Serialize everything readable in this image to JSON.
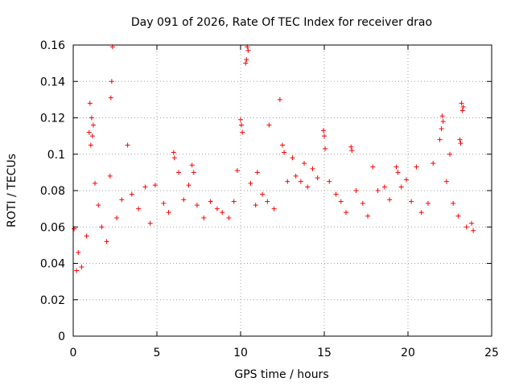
{
  "chart_data": {
    "type": "scatter",
    "title": "Day 091 of 2026, Rate Of TEC Index for receiver drao",
    "xlabel": "GPS time / hours",
    "ylabel": "ROTI / TECUs",
    "xlim": [
      0,
      25
    ],
    "ylim": [
      0,
      0.16
    ],
    "xticks": [
      0,
      5,
      10,
      15,
      20,
      25
    ],
    "yticks": [
      0,
      0.02,
      0.04,
      0.06,
      0.08,
      0.1,
      0.12,
      0.14,
      0.16
    ],
    "xtick_labels": [
      "0",
      "5",
      "10",
      "15",
      "20",
      "25"
    ],
    "ytick_labels": [
      "0",
      "0.02",
      "0.04",
      "0.06",
      "0.08",
      "0.1",
      "0.12",
      "0.14",
      "0.16"
    ],
    "grid": true,
    "marker": "+",
    "color": "#ff0000",
    "series": [
      {
        "points": [
          [
            1.0,
            0.128
          ],
          [
            1.1,
            0.12
          ],
          [
            1.2,
            0.116
          ],
          [
            1.15,
            0.11
          ],
          [
            0.95,
            0.112
          ],
          [
            1.05,
            0.105
          ],
          [
            2.35,
            0.159
          ],
          [
            2.3,
            0.14
          ],
          [
            2.25,
            0.131
          ],
          [
            2.2,
            0.088
          ],
          [
            3.25,
            0.105
          ],
          [
            10.0,
            0.119
          ],
          [
            10.05,
            0.116
          ],
          [
            10.1,
            0.112
          ],
          [
            10.4,
            0.159
          ],
          [
            10.45,
            0.157
          ],
          [
            10.35,
            0.152
          ],
          [
            10.3,
            0.15
          ],
          [
            11.7,
            0.116
          ],
          [
            12.35,
            0.13
          ],
          [
            14.95,
            0.113
          ],
          [
            15.0,
            0.11
          ],
          [
            15.05,
            0.103
          ],
          [
            16.6,
            0.104
          ],
          [
            16.65,
            0.102
          ],
          [
            22.05,
            0.121
          ],
          [
            22.1,
            0.118
          ],
          [
            22.0,
            0.114
          ],
          [
            23.2,
            0.128
          ],
          [
            23.3,
            0.126
          ],
          [
            23.25,
            0.124
          ],
          [
            23.1,
            0.108
          ],
          [
            23.15,
            0.106
          ],
          [
            17.9,
            0.093
          ],
          [
            19.3,
            0.093
          ],
          [
            19.4,
            0.09
          ],
          [
            6.0,
            0.101
          ],
          [
            6.05,
            0.098
          ],
          [
            12.5,
            0.105
          ],
          [
            12.6,
            0.101
          ],
          [
            13.1,
            0.098
          ],
          [
            13.8,
            0.095
          ],
          [
            14.3,
            0.092
          ],
          [
            20.5,
            0.093
          ],
          [
            21.5,
            0.095
          ],
          [
            21.9,
            0.108
          ],
          [
            22.5,
            0.1
          ],
          [
            7.1,
            0.094
          ],
          [
            7.2,
            0.09
          ],
          [
            9.8,
            0.091
          ],
          [
            11.0,
            0.09
          ],
          [
            0.05,
            0.059
          ],
          [
            0.2,
            0.036
          ],
          [
            0.3,
            0.046
          ],
          [
            0.5,
            0.038
          ],
          [
            0.8,
            0.055
          ],
          [
            1.3,
            0.084
          ],
          [
            1.5,
            0.072
          ],
          [
            1.7,
            0.06
          ],
          [
            2.0,
            0.052
          ],
          [
            2.6,
            0.065
          ],
          [
            2.9,
            0.075
          ],
          [
            3.5,
            0.078
          ],
          [
            3.9,
            0.07
          ],
          [
            4.3,
            0.082
          ],
          [
            4.6,
            0.062
          ],
          [
            4.9,
            0.083
          ],
          [
            5.4,
            0.073
          ],
          [
            5.7,
            0.068
          ],
          [
            6.3,
            0.09
          ],
          [
            6.6,
            0.075
          ],
          [
            6.9,
            0.083
          ],
          [
            7.4,
            0.072
          ],
          [
            7.8,
            0.065
          ],
          [
            8.2,
            0.074
          ],
          [
            8.6,
            0.07
          ],
          [
            8.9,
            0.068
          ],
          [
            9.3,
            0.065
          ],
          [
            9.6,
            0.074
          ],
          [
            10.6,
            0.084
          ],
          [
            10.9,
            0.072
          ],
          [
            11.3,
            0.078
          ],
          [
            11.6,
            0.074
          ],
          [
            12.0,
            0.07
          ],
          [
            12.8,
            0.085
          ],
          [
            13.3,
            0.088
          ],
          [
            13.6,
            0.085
          ],
          [
            14.0,
            0.082
          ],
          [
            14.6,
            0.087
          ],
          [
            15.3,
            0.085
          ],
          [
            15.7,
            0.078
          ],
          [
            16.0,
            0.074
          ],
          [
            16.3,
            0.068
          ],
          [
            16.9,
            0.08
          ],
          [
            17.3,
            0.073
          ],
          [
            17.6,
            0.066
          ],
          [
            18.2,
            0.08
          ],
          [
            18.6,
            0.082
          ],
          [
            18.9,
            0.075
          ],
          [
            19.6,
            0.082
          ],
          [
            19.9,
            0.086
          ],
          [
            20.2,
            0.074
          ],
          [
            20.8,
            0.068
          ],
          [
            21.2,
            0.073
          ],
          [
            22.3,
            0.085
          ],
          [
            22.7,
            0.073
          ],
          [
            23.0,
            0.066
          ],
          [
            23.5,
            0.06
          ],
          [
            23.8,
            0.062
          ],
          [
            23.9,
            0.058
          ]
        ]
      }
    ]
  }
}
